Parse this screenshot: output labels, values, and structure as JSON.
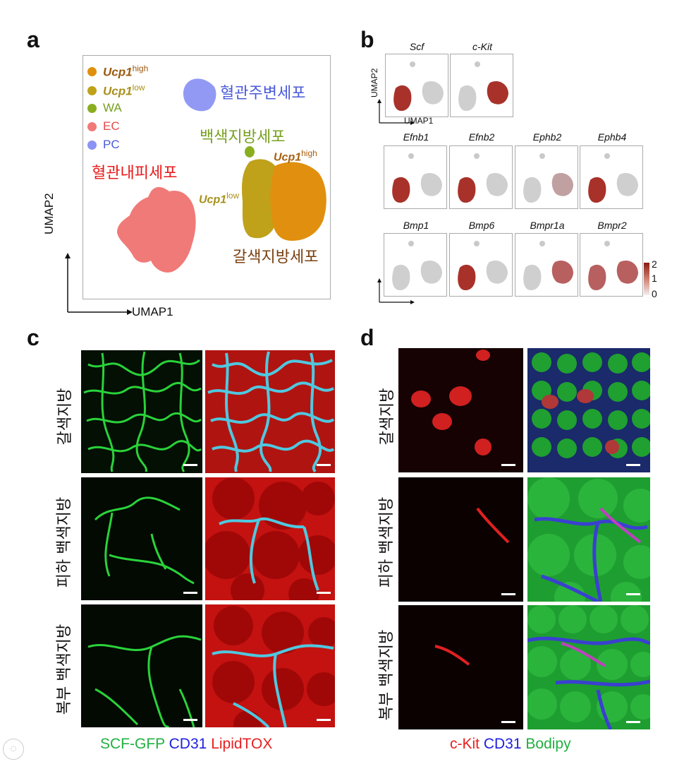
{
  "panel_a": {
    "letter": "a",
    "legend": [
      {
        "label": "Ucp1",
        "sup": "high",
        "color": "#E0900E",
        "text_color": "#9A5A10",
        "italic": true
      },
      {
        "label": "Ucp1",
        "sup": "low",
        "color": "#BFA21A",
        "text_color": "#A8901A",
        "italic": true
      },
      {
        "label": "WA",
        "sup": "",
        "color": "#8AAE1F",
        "text_color": "#78A020",
        "italic": false
      },
      {
        "label": "EC",
        "sup": "",
        "color": "#F07A78",
        "text_color": "#E84848",
        "italic": false
      },
      {
        "label": "PC",
        "sup": "",
        "color": "#8C93F4",
        "text_color": "#4A5BD8",
        "italic": false
      }
    ],
    "cluster_labels": {
      "pericyte": "혈관주변세포",
      "white_adipocyte": "백색지방세포",
      "endothelial": "혈관내피세포",
      "brown_adipocyte": "갈색지방세포",
      "ucp1_high_main": "Ucp1",
      "ucp1_high_sup": "high",
      "ucp1_low_main": "Ucp1",
      "ucp1_low_sup": "low"
    },
    "xlabel": "UMAP1",
    "ylabel": "UMAP2"
  },
  "panel_b": {
    "letter": "b",
    "rows": [
      [
        "Scf",
        "c-Kit"
      ],
      [
        "Efnb1",
        "Efnb2",
        "Ephb2",
        "Ephb4"
      ],
      [
        "Bmp1",
        "Bmp6",
        "Bmpr1a",
        "Bmpr2"
      ]
    ],
    "xlabel": "UMAP1",
    "ylabel": "UMAP2",
    "colorbar_ticks": [
      "2",
      "1",
      "0"
    ]
  },
  "panel_c": {
    "letter": "c",
    "row_labels": [
      "갈색지방",
      "피하 백색지방",
      "복부 백색지방"
    ],
    "caption": [
      {
        "text": "SCF-GFP",
        "color": "#20B040"
      },
      {
        "text": "CD31",
        "color": "#2020E0"
      },
      {
        "text": "LipidTOX",
        "color": "#E82020"
      }
    ]
  },
  "panel_d": {
    "letter": "d",
    "row_labels": [
      "갈색지방",
      "피하 백색지방",
      "복부 백색지방"
    ],
    "caption": [
      {
        "text": "c-Kit",
        "color": "#E82020"
      },
      {
        "text": "CD31",
        "color": "#2020E0"
      },
      {
        "text": "Bodipy",
        "color": "#20B040"
      }
    ]
  }
}
